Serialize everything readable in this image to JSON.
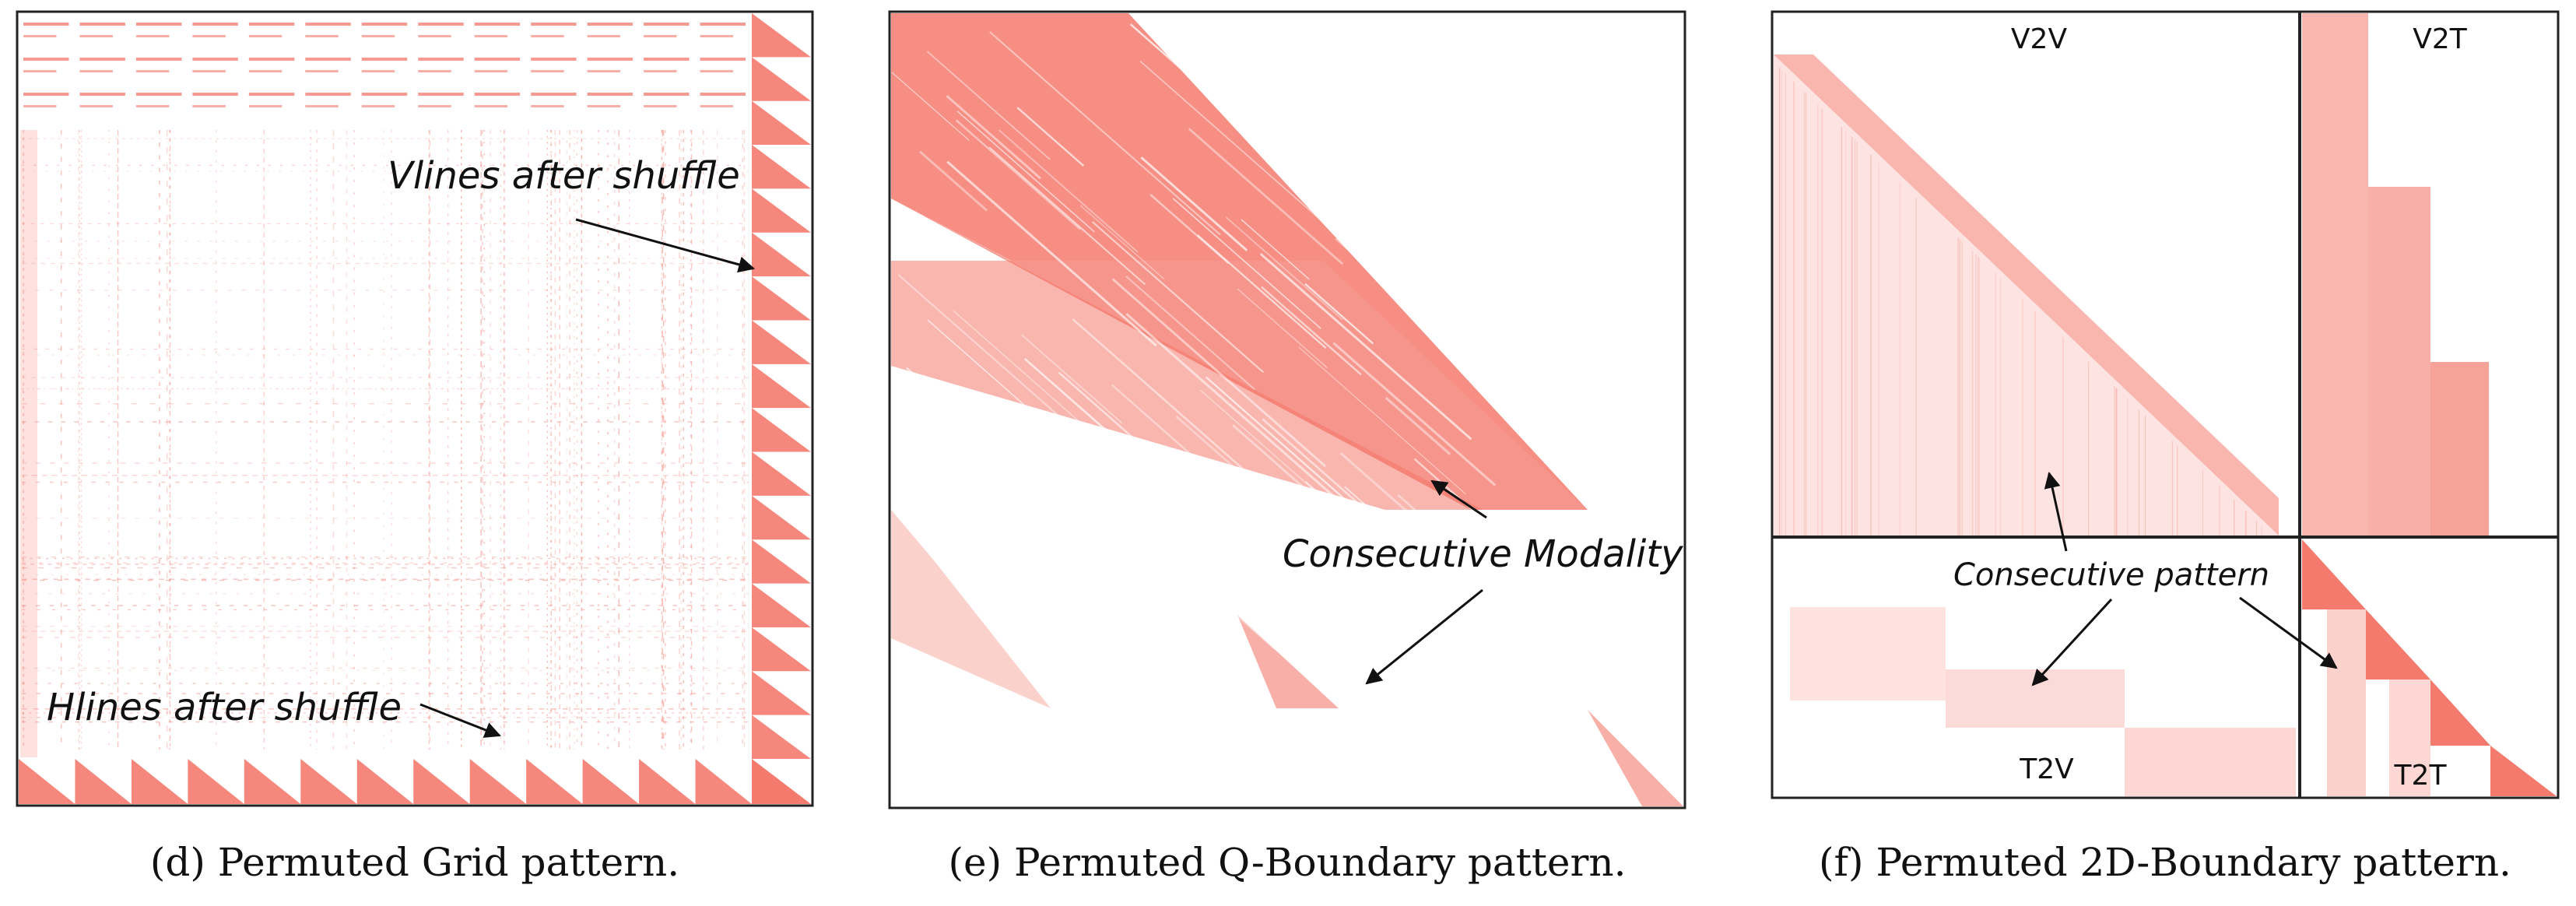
{
  "figure": {
    "panels": [
      {
        "id": "d",
        "caption": "(d) Permuted Grid pattern.",
        "annotations": [
          "Vlines after shuffle",
          "Hlines after shuffle"
        ]
      },
      {
        "id": "e",
        "caption": "(e) Permuted Q-Boundary pattern.",
        "annotations": [
          "Consecutive Modality"
        ]
      },
      {
        "id": "f",
        "caption": "(f) Permuted 2D-Boundary pattern.",
        "annotations": [
          "Consecutive pattern"
        ],
        "quadrants": [
          "V2V",
          "V2T",
          "T2V",
          "T2T"
        ]
      }
    ],
    "colors": {
      "pattern": "#f47a6e",
      "frame": "#222222",
      "text": "#111111"
    }
  }
}
